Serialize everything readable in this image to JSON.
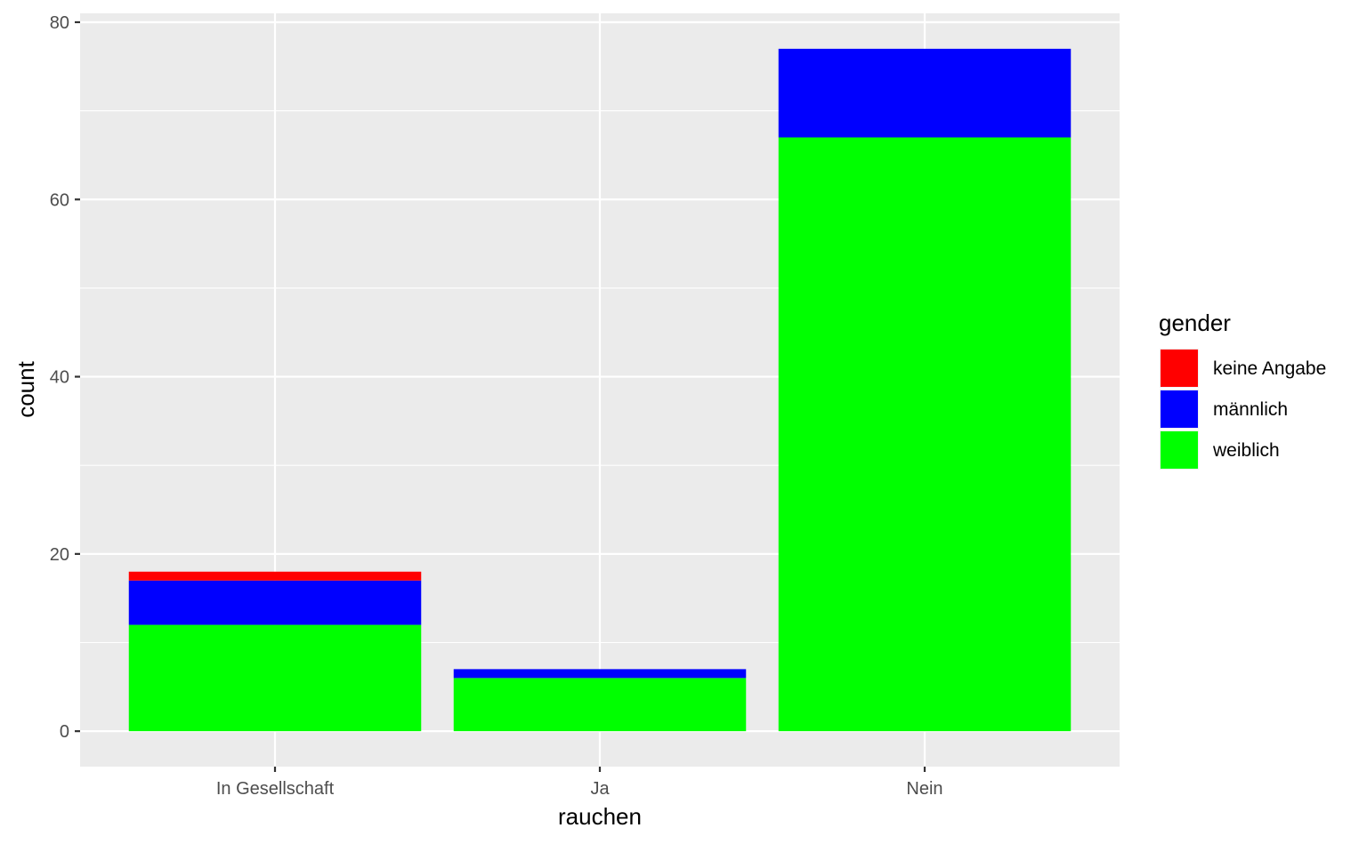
{
  "chart_data": {
    "type": "bar",
    "stacked": true,
    "xlabel": "rauchen",
    "ylabel": "count",
    "categories": [
      "In Gesellschaft",
      "Ja",
      "Nein"
    ],
    "series": [
      {
        "name": "keine Angabe",
        "color": "#ff0000",
        "values": [
          1,
          0,
          0
        ]
      },
      {
        "name": "männlich",
        "color": "#0000ff",
        "values": [
          5,
          1,
          10
        ]
      },
      {
        "name": "weiblich",
        "color": "#00ff00",
        "values": [
          12,
          6,
          67
        ]
      }
    ],
    "ylim": [
      -4,
      81
    ],
    "yticks": [
      0,
      20,
      40,
      60,
      80
    ],
    "grid": true,
    "legend": {
      "title": "gender",
      "placement": "right"
    },
    "panel_background": "#ebebeb",
    "gridline_color": "#ffffff"
  }
}
